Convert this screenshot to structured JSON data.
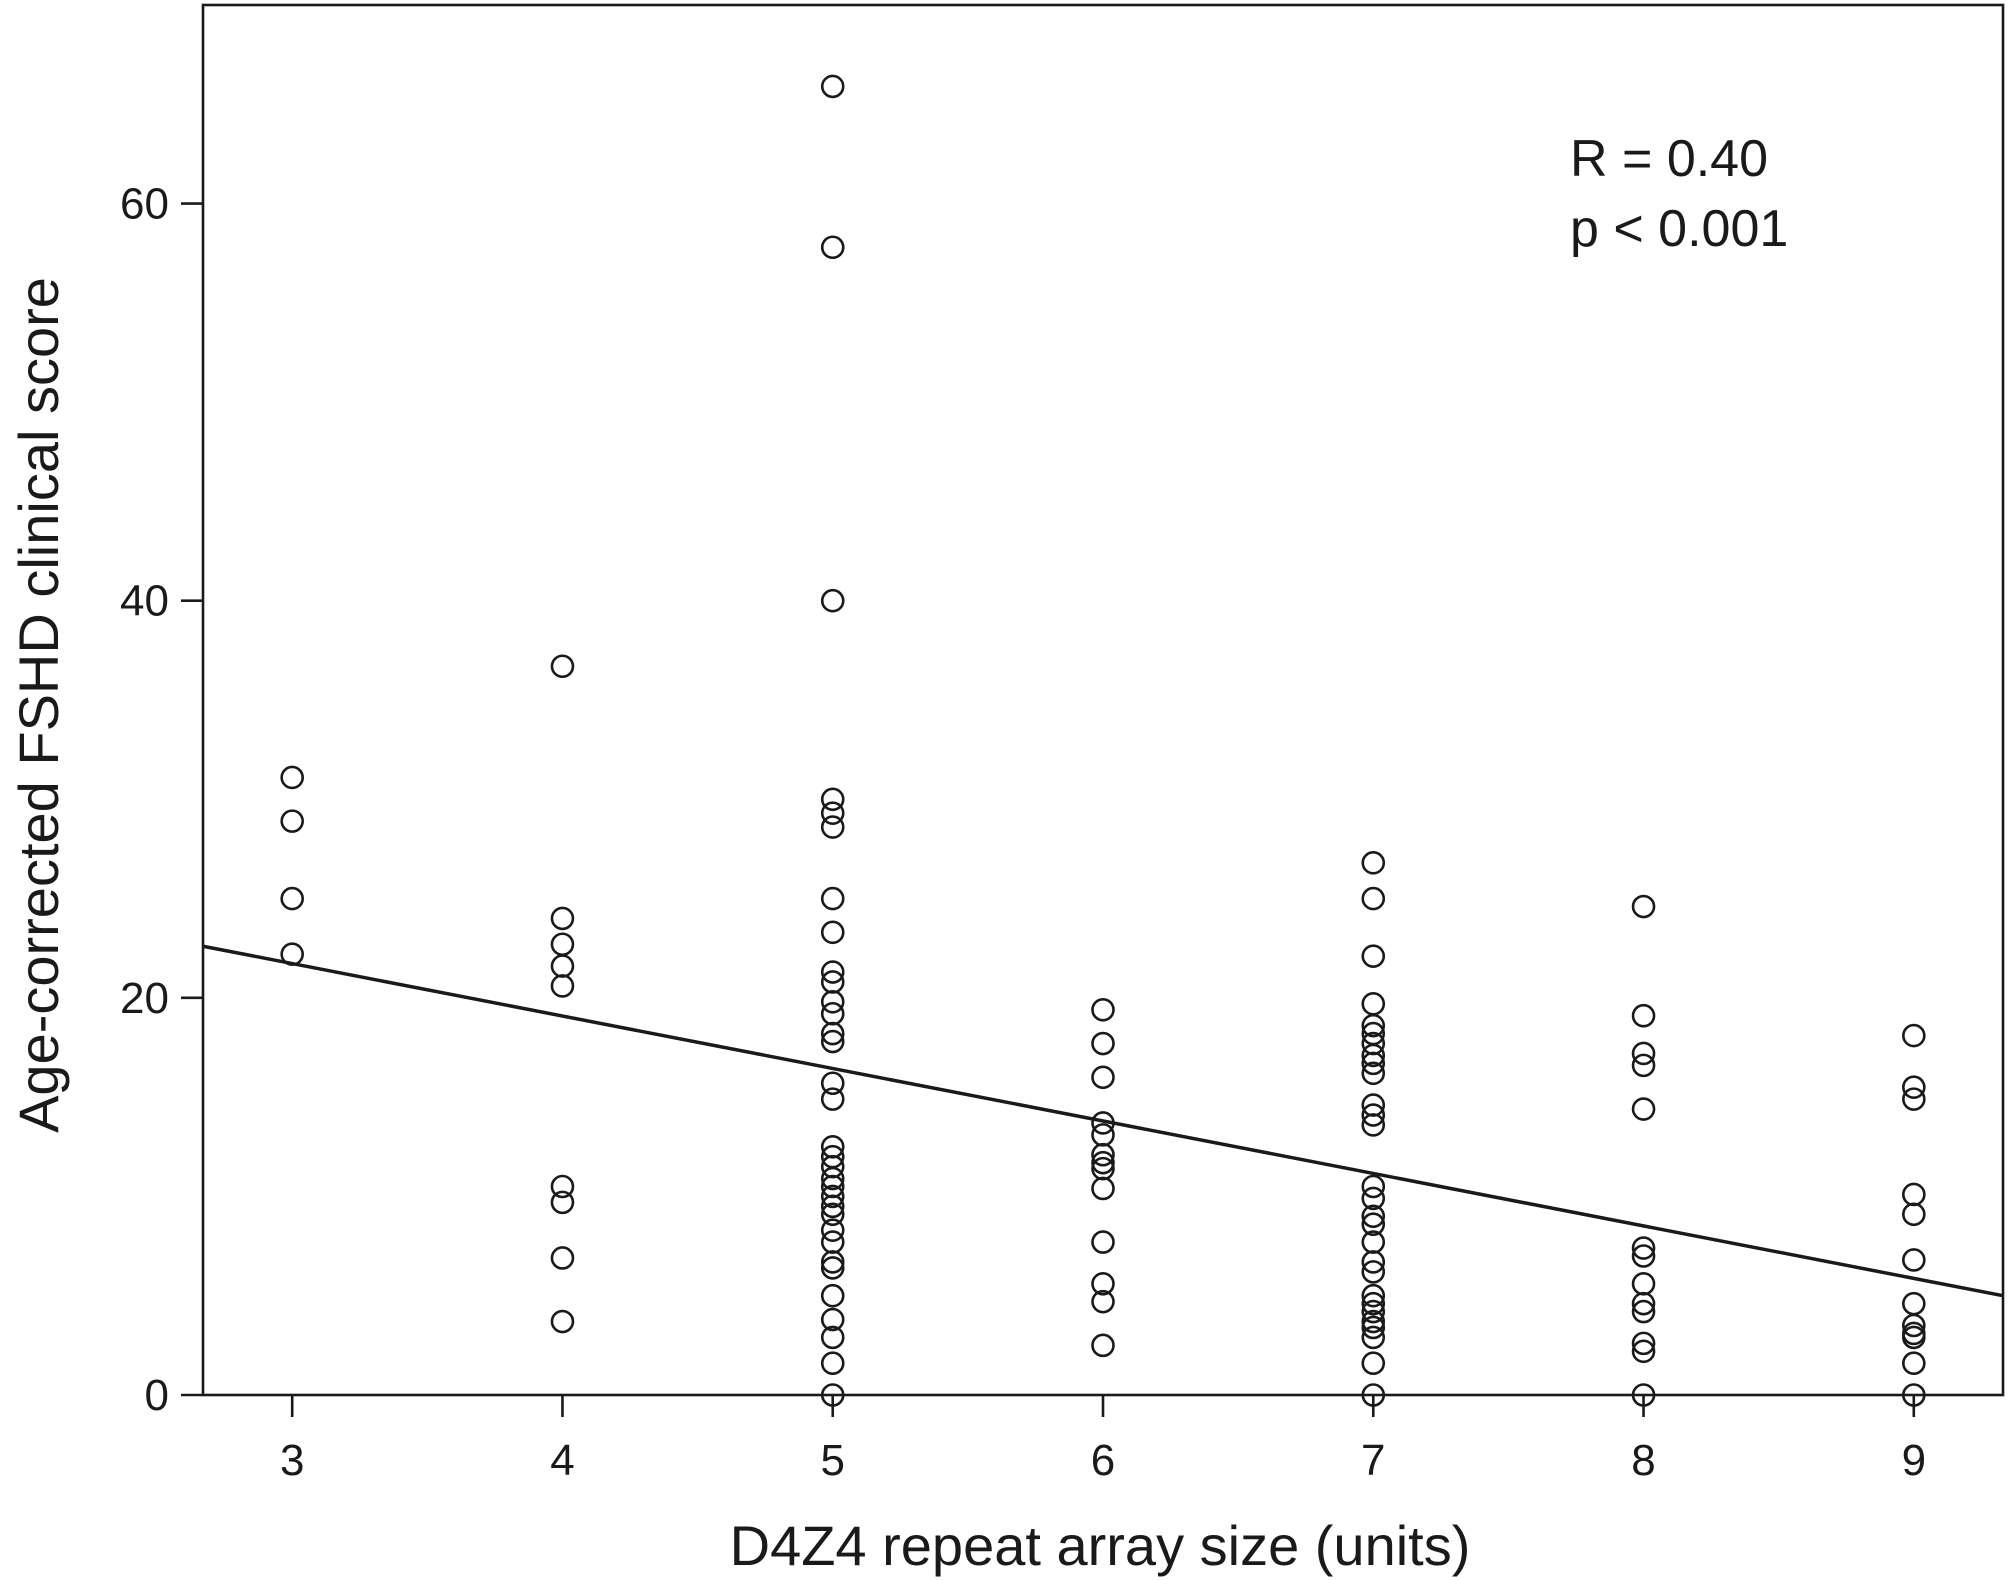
{
  "chart_data": {
    "type": "scatter",
    "title": "",
    "xlabel": "D4Z4 repeat array size (units)",
    "ylabel": "Age-corrected FSHD clinical score",
    "xlim": [
      2.67,
      9.33
    ],
    "ylim": [
      0,
      70
    ],
    "xticks": [
      3,
      4,
      5,
      6,
      7,
      8,
      9
    ],
    "yticks": [
      0,
      20,
      40,
      60
    ],
    "grid": false,
    "legend": "none",
    "annotations": [
      "R = 0.40",
      "p < 0.001"
    ],
    "regression_line": {
      "x": [
        2.67,
        9.33
      ],
      "y": [
        22.6,
        5.0
      ]
    },
    "series": [
      {
        "points": [
          [
            3,
            31.1
          ],
          [
            3,
            28.9
          ],
          [
            3,
            25.0
          ],
          [
            3,
            22.2
          ],
          [
            4,
            36.7
          ],
          [
            4,
            24.0
          ],
          [
            4,
            22.7
          ],
          [
            4,
            21.6
          ],
          [
            4,
            20.6
          ],
          [
            4,
            10.5
          ],
          [
            4,
            9.7
          ],
          [
            4,
            6.9
          ],
          [
            4,
            3.7
          ],
          [
            5,
            65.9
          ],
          [
            5,
            57.8
          ],
          [
            5,
            40.0
          ],
          [
            5,
            30.0
          ],
          [
            5,
            29.3
          ],
          [
            5,
            28.6
          ],
          [
            5,
            25.0
          ],
          [
            5,
            23.3
          ],
          [
            5,
            21.3
          ],
          [
            5,
            20.8
          ],
          [
            5,
            19.8
          ],
          [
            5,
            19.2
          ],
          [
            5,
            18.2
          ],
          [
            5,
            17.8
          ],
          [
            5,
            15.7
          ],
          [
            5,
            14.9
          ],
          [
            5,
            12.5
          ],
          [
            5,
            12.0
          ],
          [
            5,
            11.5
          ],
          [
            5,
            10.9
          ],
          [
            5,
            10.5
          ],
          [
            5,
            10.0
          ],
          [
            5,
            9.5
          ],
          [
            5,
            9.1
          ],
          [
            5,
            8.3
          ],
          [
            5,
            7.7
          ],
          [
            5,
            6.7
          ],
          [
            5,
            6.4
          ],
          [
            5,
            5.0
          ],
          [
            5,
            3.8
          ],
          [
            5,
            2.9
          ],
          [
            5,
            1.6
          ],
          [
            5,
            0.0
          ],
          [
            6,
            19.4
          ],
          [
            6,
            17.7
          ],
          [
            6,
            16.0
          ],
          [
            6,
            13.7
          ],
          [
            6,
            13.1
          ],
          [
            6,
            12.1
          ],
          [
            6,
            11.7
          ],
          [
            6,
            11.4
          ],
          [
            6,
            10.4
          ],
          [
            6,
            7.7
          ],
          [
            6,
            5.6
          ],
          [
            6,
            4.7
          ],
          [
            6,
            2.5
          ],
          [
            7,
            26.8
          ],
          [
            7,
            25.0
          ],
          [
            7,
            22.1
          ],
          [
            7,
            19.7
          ],
          [
            7,
            18.6
          ],
          [
            7,
            18.2
          ],
          [
            7,
            17.7
          ],
          [
            7,
            17.1
          ],
          [
            7,
            16.7
          ],
          [
            7,
            16.2
          ],
          [
            7,
            14.6
          ],
          [
            7,
            14.1
          ],
          [
            7,
            13.6
          ],
          [
            7,
            10.5
          ],
          [
            7,
            9.9
          ],
          [
            7,
            9.0
          ],
          [
            7,
            8.6
          ],
          [
            7,
            7.7
          ],
          [
            7,
            6.7
          ],
          [
            7,
            6.2
          ],
          [
            7,
            5.0
          ],
          [
            7,
            4.6
          ],
          [
            7,
            4.2
          ],
          [
            7,
            3.7
          ],
          [
            7,
            3.4
          ],
          [
            7,
            2.9
          ],
          [
            7,
            1.6
          ],
          [
            7,
            0.0
          ],
          [
            8,
            24.6
          ],
          [
            8,
            19.1
          ],
          [
            8,
            17.2
          ],
          [
            8,
            16.6
          ],
          [
            8,
            14.4
          ],
          [
            8,
            7.4
          ],
          [
            8,
            7.0
          ],
          [
            8,
            5.6
          ],
          [
            8,
            4.6
          ],
          [
            8,
            4.2
          ],
          [
            8,
            2.6
          ],
          [
            8,
            2.2
          ],
          [
            8,
            0.0
          ],
          [
            9,
            18.1
          ],
          [
            9,
            15.5
          ],
          [
            9,
            14.9
          ],
          [
            9,
            10.1
          ],
          [
            9,
            9.1
          ],
          [
            9,
            6.8
          ],
          [
            9,
            4.6
          ],
          [
            9,
            3.5
          ],
          [
            9,
            3.1
          ],
          [
            9,
            2.9
          ],
          [
            9,
            1.6
          ],
          [
            9,
            0.0
          ]
        ]
      }
    ]
  }
}
